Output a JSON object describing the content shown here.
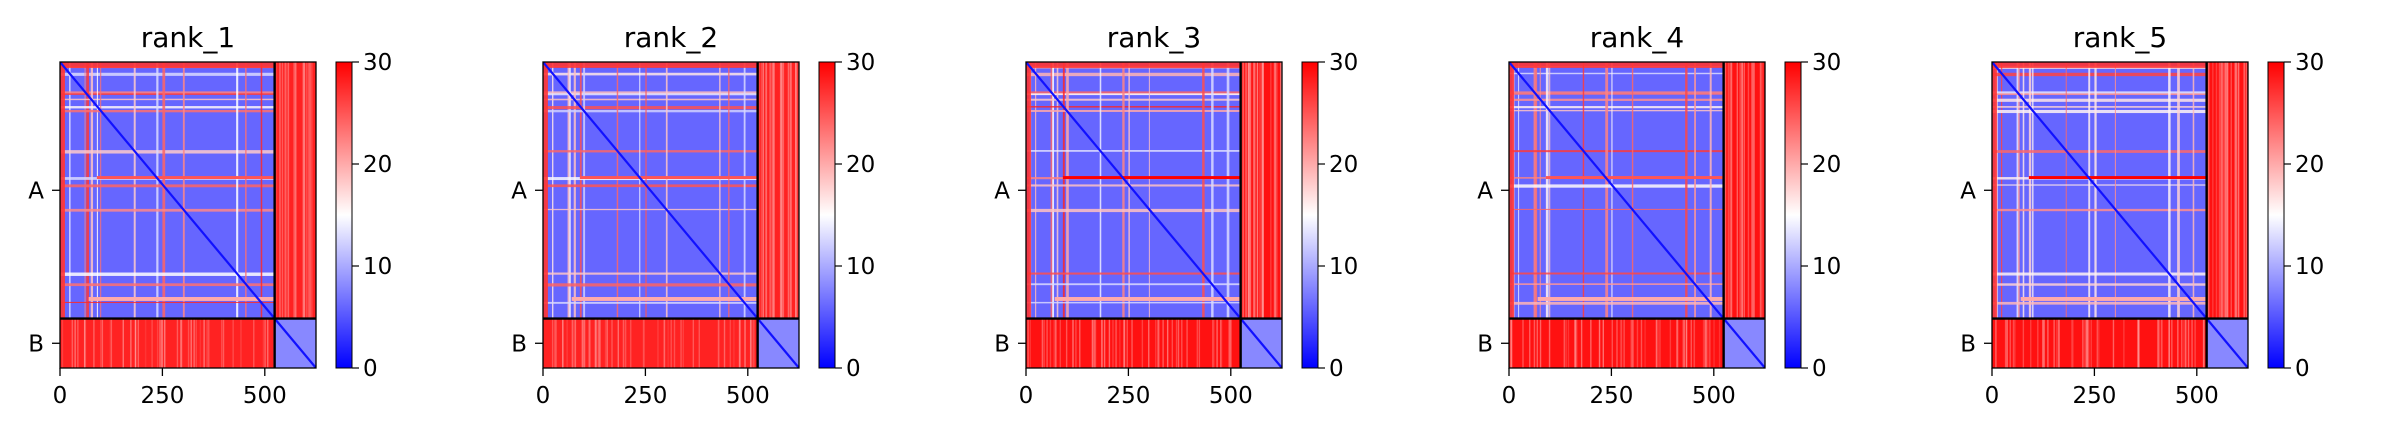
{
  "chart_data": [
    {
      "type": "heatmap",
      "title": "rank_1",
      "x_ticks": [
        0,
        250,
        500
      ],
      "y_tick_labels": [
        "A",
        "B"
      ],
      "chains": [
        {
          "name": "A",
          "length": 524
        },
        {
          "name": "B",
          "length": 101
        }
      ],
      "total_length": 625,
      "colorbar": {
        "min": 0,
        "max": 30,
        "ticks": [
          0,
          10,
          20,
          30
        ],
        "colormap": "bwr"
      },
      "inter_chain_value": 28,
      "intra_chain_value": 6
    },
    {
      "type": "heatmap",
      "title": "rank_2",
      "x_ticks": [
        0,
        250,
        500
      ],
      "y_tick_labels": [
        "A",
        "B"
      ],
      "chains": [
        {
          "name": "A",
          "length": 524
        },
        {
          "name": "B",
          "length": 101
        }
      ],
      "total_length": 625,
      "colorbar": {
        "min": 0,
        "max": 30,
        "ticks": [
          0,
          10,
          20,
          30
        ],
        "colormap": "bwr"
      },
      "inter_chain_value": 28,
      "intra_chain_value": 6
    },
    {
      "type": "heatmap",
      "title": "rank_3",
      "x_ticks": [
        0,
        250,
        500
      ],
      "y_tick_labels": [
        "A",
        "B"
      ],
      "chains": [
        {
          "name": "A",
          "length": 524
        },
        {
          "name": "B",
          "length": 101
        }
      ],
      "total_length": 625,
      "colorbar": {
        "min": 0,
        "max": 30,
        "ticks": [
          0,
          10,
          20,
          30
        ],
        "colormap": "bwr"
      },
      "inter_chain_value": 29,
      "intra_chain_value": 6
    },
    {
      "type": "heatmap",
      "title": "rank_4",
      "x_ticks": [
        0,
        250,
        500
      ],
      "y_tick_labels": [
        "A",
        "B"
      ],
      "chains": [
        {
          "name": "A",
          "length": 524
        },
        {
          "name": "B",
          "length": 101
        }
      ],
      "total_length": 625,
      "colorbar": {
        "min": 0,
        "max": 30,
        "ticks": [
          0,
          10,
          20,
          30
        ],
        "colormap": "bwr"
      },
      "inter_chain_value": 29,
      "intra_chain_value": 6
    },
    {
      "type": "heatmap",
      "title": "rank_5",
      "x_ticks": [
        0,
        250,
        500
      ],
      "y_tick_labels": [
        "A",
        "B"
      ],
      "chains": [
        {
          "name": "A",
          "length": 524
        },
        {
          "name": "B",
          "length": 101
        }
      ],
      "total_length": 625,
      "colorbar": {
        "min": 0,
        "max": 30,
        "ticks": [
          0,
          10,
          20,
          30
        ],
        "colormap": "bwr"
      },
      "inter_chain_value": 29,
      "intra_chain_value": 6
    }
  ]
}
